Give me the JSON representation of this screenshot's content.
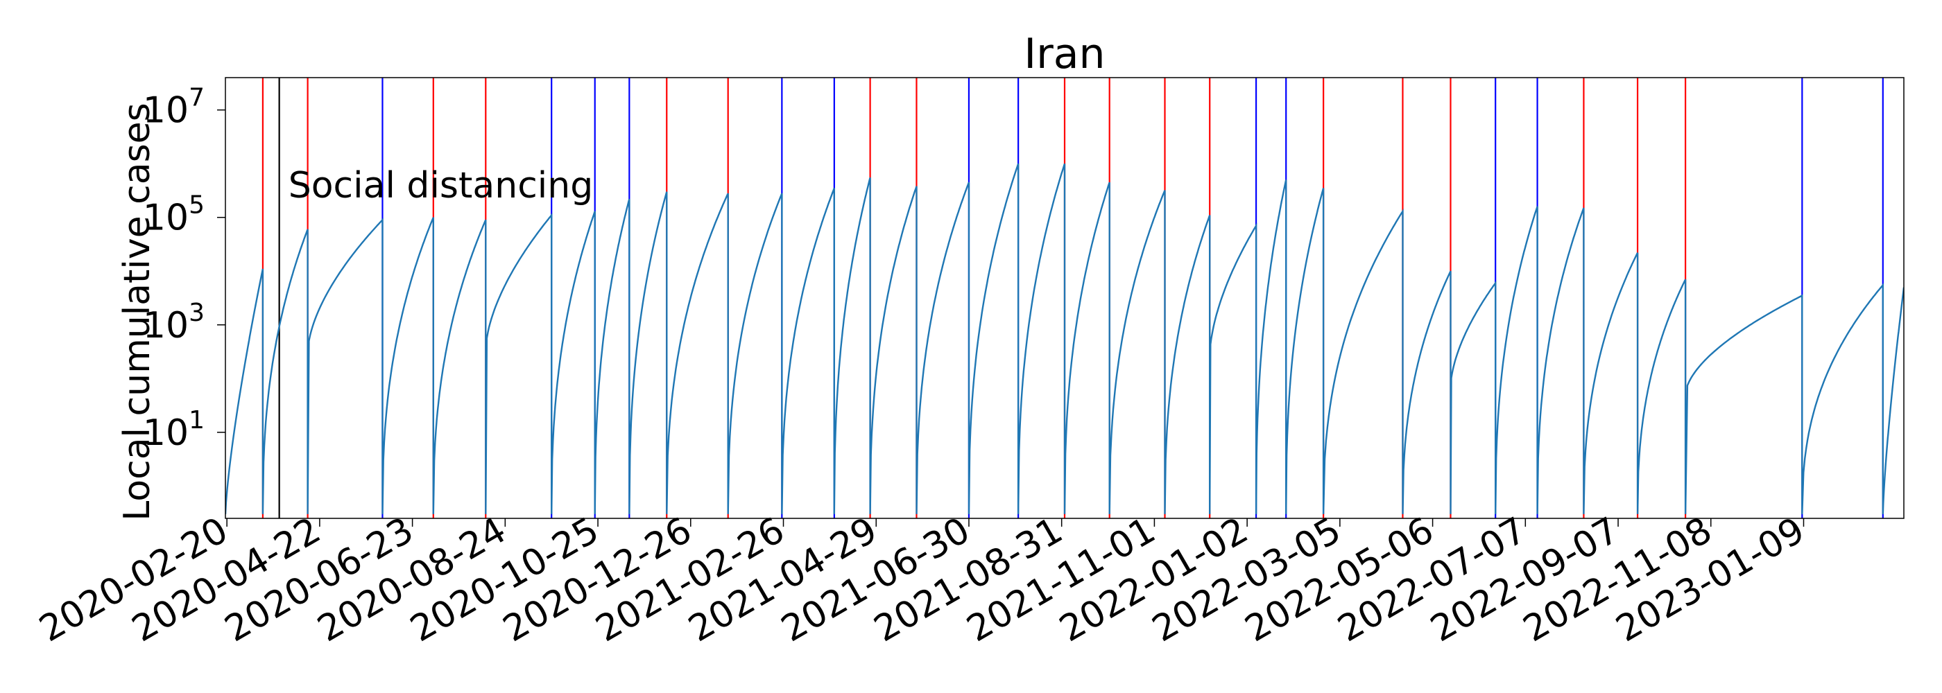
{
  "chart_data": {
    "type": "line",
    "title": "Iran",
    "ylabel": "Local cumulative cases",
    "xlabel": "",
    "y_scale": "log",
    "ylim": [
      0.25,
      40000000
    ],
    "xlim": [
      "2020-02-19",
      "2023-03-17"
    ],
    "y_ticks": [
      {
        "value": 10,
        "base": "10",
        "exp": "1"
      },
      {
        "value": 1000,
        "base": "10",
        "exp": "3"
      },
      {
        "value": 100000,
        "base": "10",
        "exp": "5"
      },
      {
        "value": 10000000,
        "base": "10",
        "exp": "7"
      }
    ],
    "x_ticks": [
      "2020-02-20",
      "2020-04-22",
      "2020-06-23",
      "2020-08-24",
      "2020-10-25",
      "2020-12-26",
      "2021-02-26",
      "2021-04-29",
      "2021-06-30",
      "2021-08-31",
      "2021-11-01",
      "2022-01-02",
      "2022-03-05",
      "2022-05-06",
      "2022-07-07",
      "2022-09-07",
      "2022-11-08",
      "2023-01-09"
    ],
    "annotation": {
      "text": "Social distancing",
      "date": "2020-04-02",
      "y": 400000
    },
    "series_color": "#1f77b4",
    "vlines": [
      {
        "date": "2020-03-15",
        "color": "#ff0000"
      },
      {
        "date": "2020-03-26",
        "color": "#000000"
      },
      {
        "date": "2020-04-14",
        "color": "#ff0000"
      },
      {
        "date": "2020-06-03",
        "color": "#0000ff"
      },
      {
        "date": "2020-07-07",
        "color": "#ff0000"
      },
      {
        "date": "2020-08-11",
        "color": "#ff0000"
      },
      {
        "date": "2020-09-24",
        "color": "#0000ff"
      },
      {
        "date": "2020-10-23",
        "color": "#0000ff"
      },
      {
        "date": "2020-11-15",
        "color": "#0000ff"
      },
      {
        "date": "2020-12-10",
        "color": "#ff0000"
      },
      {
        "date": "2021-01-20",
        "color": "#ff0000"
      },
      {
        "date": "2021-02-25",
        "color": "#0000ff"
      },
      {
        "date": "2021-04-01",
        "color": "#0000ff"
      },
      {
        "date": "2021-04-25",
        "color": "#ff0000"
      },
      {
        "date": "2021-05-26",
        "color": "#ff0000"
      },
      {
        "date": "2021-06-30",
        "color": "#0000ff"
      },
      {
        "date": "2021-08-02",
        "color": "#0000ff"
      },
      {
        "date": "2021-09-02",
        "color": "#ff0000"
      },
      {
        "date": "2021-10-02",
        "color": "#ff0000"
      },
      {
        "date": "2021-11-08",
        "color": "#ff0000"
      },
      {
        "date": "2021-12-08",
        "color": "#ff0000"
      },
      {
        "date": "2022-01-08",
        "color": "#0000ff"
      },
      {
        "date": "2022-01-28",
        "color": "#0000ff"
      },
      {
        "date": "2022-02-22",
        "color": "#ff0000"
      },
      {
        "date": "2022-04-16",
        "color": "#ff0000"
      },
      {
        "date": "2022-05-18",
        "color": "#ff0000"
      },
      {
        "date": "2022-06-17",
        "color": "#0000ff"
      },
      {
        "date": "2022-07-15",
        "color": "#0000ff"
      },
      {
        "date": "2022-08-15",
        "color": "#ff0000"
      },
      {
        "date": "2022-09-20",
        "color": "#ff0000"
      },
      {
        "date": "2022-10-22",
        "color": "#ff0000"
      },
      {
        "date": "2023-01-08",
        "color": "#0000ff"
      },
      {
        "date": "2023-03-03",
        "color": "#0000ff"
      }
    ],
    "segments": [
      {
        "start": "2020-02-19",
        "end": "2020-03-15",
        "peak": 11000,
        "shape": "early"
      },
      {
        "start": "2020-03-15",
        "end": "2020-04-14",
        "peak": 60000,
        "shape": "concave"
      },
      {
        "start": "2020-04-14",
        "end": "2020-06-03",
        "peak": 90000,
        "shape": "slow"
      },
      {
        "start": "2020-06-03",
        "end": "2020-07-07",
        "peak": 100000,
        "shape": "concave"
      },
      {
        "start": "2020-07-07",
        "end": "2020-08-11",
        "peak": 90000,
        "shape": "concave"
      },
      {
        "start": "2020-08-11",
        "end": "2020-09-24",
        "peak": 110000,
        "shape": "slow"
      },
      {
        "start": "2020-09-24",
        "end": "2020-10-23",
        "peak": 130000,
        "shape": "concave"
      },
      {
        "start": "2020-10-23",
        "end": "2020-11-15",
        "peak": 220000,
        "shape": "concave"
      },
      {
        "start": "2020-11-15",
        "end": "2020-12-10",
        "peak": 300000,
        "shape": "concave"
      },
      {
        "start": "2020-12-10",
        "end": "2021-01-20",
        "peak": 280000,
        "shape": "concave"
      },
      {
        "start": "2021-01-20",
        "end": "2021-02-25",
        "peak": 280000,
        "shape": "concave"
      },
      {
        "start": "2021-02-25",
        "end": "2021-04-01",
        "peak": 350000,
        "shape": "concave"
      },
      {
        "start": "2021-04-01",
        "end": "2021-04-25",
        "peak": 550000,
        "shape": "concave"
      },
      {
        "start": "2021-04-25",
        "end": "2021-05-26",
        "peak": 380000,
        "shape": "concave"
      },
      {
        "start": "2021-05-26",
        "end": "2021-06-30",
        "peak": 450000,
        "shape": "concave"
      },
      {
        "start": "2021-06-30",
        "end": "2021-08-02",
        "peak": 1000000,
        "shape": "concave"
      },
      {
        "start": "2021-08-02",
        "end": "2021-09-02",
        "peak": 1000000,
        "shape": "concave"
      },
      {
        "start": "2021-09-02",
        "end": "2021-10-02",
        "peak": 450000,
        "shape": "concave"
      },
      {
        "start": "2021-10-02",
        "end": "2021-11-08",
        "peak": 320000,
        "shape": "concave"
      },
      {
        "start": "2021-11-08",
        "end": "2021-12-08",
        "peak": 110000,
        "shape": "concave"
      },
      {
        "start": "2021-12-08",
        "end": "2022-01-08",
        "peak": 70000,
        "shape": "slow"
      },
      {
        "start": "2022-01-08",
        "end": "2022-01-28",
        "peak": 500000,
        "shape": "concave"
      },
      {
        "start": "2022-01-28",
        "end": "2022-02-22",
        "peak": 350000,
        "shape": "concave"
      },
      {
        "start": "2022-02-22",
        "end": "2022-04-16",
        "peak": 130000,
        "shape": "concave"
      },
      {
        "start": "2022-04-16",
        "end": "2022-05-18",
        "peak": 10000,
        "shape": "concave"
      },
      {
        "start": "2022-05-18",
        "end": "2022-06-17",
        "peak": 6000,
        "shape": "slow"
      },
      {
        "start": "2022-06-17",
        "end": "2022-07-15",
        "peak": 160000,
        "shape": "concave"
      },
      {
        "start": "2022-07-15",
        "end": "2022-08-15",
        "peak": 150000,
        "shape": "concave"
      },
      {
        "start": "2022-08-15",
        "end": "2022-09-20",
        "peak": 22000,
        "shape": "concave"
      },
      {
        "start": "2022-09-20",
        "end": "2022-10-22",
        "peak": 7000,
        "shape": "concave"
      },
      {
        "start": "2022-10-22",
        "end": "2023-01-08",
        "peak": 3500,
        "shape": "slow"
      },
      {
        "start": "2023-01-08",
        "end": "2023-03-03",
        "peak": 5500,
        "shape": "concave"
      },
      {
        "start": "2023-03-03",
        "end": "2023-03-17",
        "peak": 5000,
        "shape": "early"
      }
    ]
  }
}
